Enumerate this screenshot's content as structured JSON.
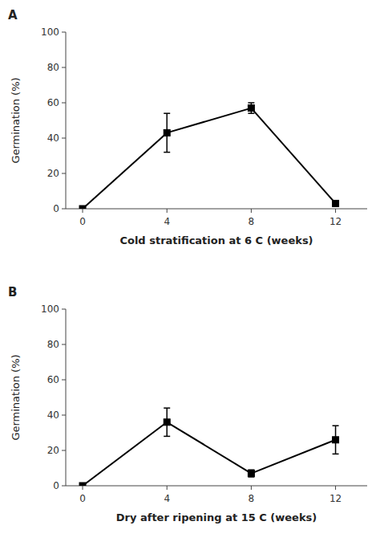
{
  "chart_data": [
    {
      "type": "line",
      "title": "A",
      "xlabel": "Cold stratification at 6 C (weeks)",
      "ylabel": "Germination (%)",
      "x": [
        0,
        4,
        8,
        12
      ],
      "values": [
        0,
        43,
        57,
        3
      ],
      "errors": [
        0,
        11,
        3,
        1
      ],
      "xlim": [
        -0.8,
        13.5
      ],
      "xticks": [
        0,
        4,
        8,
        12
      ],
      "ylim": [
        0,
        100
      ],
      "yticks": [
        0,
        20,
        40,
        60,
        80,
        100
      ],
      "color": "#000000",
      "marker": "square"
    },
    {
      "type": "line",
      "title": "B",
      "xlabel": "Dry after ripening at 15 C (weeks)",
      "ylabel": "Germination (%)",
      "x": [
        0,
        4,
        8,
        12
      ],
      "values": [
        0,
        36,
        7,
        26
      ],
      "errors": [
        0,
        8,
        2,
        8
      ],
      "xlim": [
        -0.8,
        13.5
      ],
      "xticks": [
        0,
        4,
        8,
        12
      ],
      "ylim": [
        0,
        100
      ],
      "yticks": [
        0,
        20,
        40,
        60,
        80,
        100
      ],
      "color": "#000000",
      "marker": "square"
    }
  ]
}
